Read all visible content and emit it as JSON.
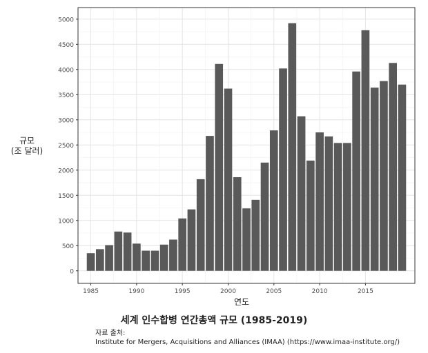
{
  "chart_data": {
    "type": "bar",
    "title": "세계 인수합병 연간총액 규모 (1985-2019)",
    "xlabel": "연도",
    "ylabel_lines": [
      "규모",
      "(조 달러)"
    ],
    "categories": [
      1985,
      1986,
      1987,
      1988,
      1989,
      1990,
      1991,
      1992,
      1993,
      1994,
      1995,
      1996,
      1997,
      1998,
      1999,
      2000,
      2001,
      2002,
      2003,
      2004,
      2005,
      2006,
      2007,
      2008,
      2009,
      2010,
      2011,
      2012,
      2013,
      2014,
      2015,
      2016,
      2017,
      2018,
      2019
    ],
    "values": [
      350,
      430,
      510,
      780,
      760,
      540,
      400,
      400,
      520,
      620,
      1040,
      1220,
      1820,
      2680,
      4110,
      3620,
      1860,
      1240,
      1410,
      2150,
      2790,
      4020,
      4920,
      3070,
      2190,
      2750,
      2670,
      2540,
      2540,
      3960,
      4780,
      3640,
      3770,
      4130,
      3700
    ],
    "xlim": [
      1983.6,
      2020.4
    ],
    "ylim": [
      -250,
      5230
    ],
    "xticks": [
      1985,
      1990,
      1995,
      2000,
      2005,
      2010,
      2015
    ],
    "yticks": [
      0,
      500,
      1000,
      1500,
      2000,
      2500,
      3000,
      3500,
      4000,
      4500,
      5000
    ],
    "bar_color": "#595959",
    "grid": true
  },
  "source": {
    "label": "자료 출처:",
    "text": "Institute for Mergers, Acquisitions and Alliances (IMAA) (https://www.imaa-institute.org/)"
  }
}
